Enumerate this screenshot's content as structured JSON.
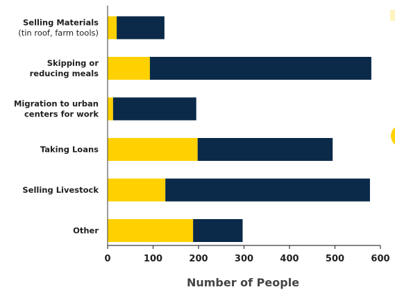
{
  "colors": {
    "segment_a": "#FFD100",
    "segment_b": "#0B2A4A",
    "axis": "#3a3a3a",
    "decor_accent": "#FFD100"
  },
  "chart_data": {
    "type": "bar",
    "orientation": "horizontal",
    "stacked": true,
    "categories": [
      "Selling Materials (tin roof, farm tools)",
      "Skipping or reducing meals",
      "Migration to urban centers for work",
      "Taking Loans",
      "Selling Livestock",
      "Other"
    ],
    "category_label_lines": [
      [
        {
          "text": "Selling Materials",
          "bold": true
        },
        {
          "text": "(tin roof, farm tools)",
          "bold": false
        }
      ],
      [
        {
          "text": "Skipping or",
          "bold": true
        },
        {
          "text": "reducing meals",
          "bold": true
        }
      ],
      [
        {
          "text": "Migration to urban",
          "bold": true
        },
        {
          "text": "centers for work",
          "bold": true
        }
      ],
      [
        {
          "text": "Taking Loans",
          "bold": true
        }
      ],
      [
        {
          "text": "Selling Livestock",
          "bold": true
        }
      ],
      [
        {
          "text": "Other",
          "bold": true
        }
      ]
    ],
    "series": [
      {
        "values": [
          20,
          93,
          12,
          198,
          127,
          188
        ]
      },
      {
        "values": [
          105,
          487,
          183,
          297,
          450,
          109
        ]
      }
    ],
    "xlabel": "Number of People",
    "xlim": [
      0,
      600
    ],
    "xticks": [
      0,
      100,
      200,
      300,
      400,
      500,
      600
    ],
    "grid": false,
    "legend": "none"
  }
}
